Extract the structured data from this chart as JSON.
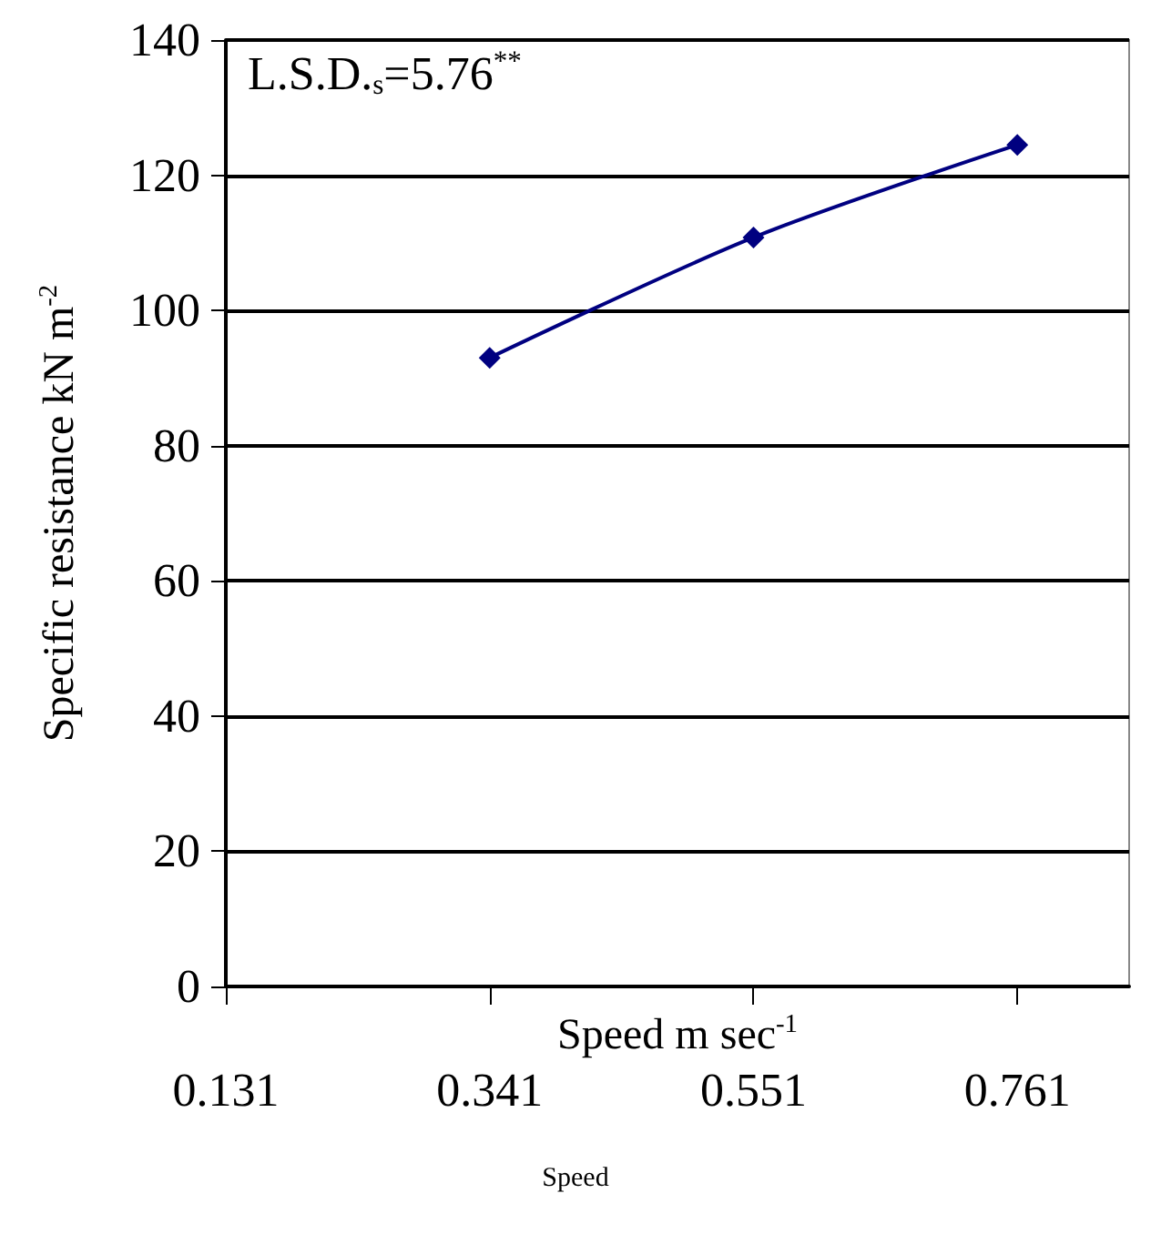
{
  "chart_data": {
    "type": "line",
    "xlabel": "Speed m sec$^{-1}$",
    "ylabel": "Specific resistance kN m$^{-2}$",
    "x": [
      0.341,
      0.551,
      0.761
    ],
    "series": [
      {
        "color": "#000080",
        "values": [
          93,
          110.8,
          124.5
        ]
      }
    ],
    "xlim": [
      0.131,
      0.85
    ],
    "xticks": [
      0.131,
      0.341,
      0.551,
      0.761
    ],
    "ylim": [
      0,
      140
    ],
    "yticks": [
      0,
      20,
      40,
      60,
      80,
      100,
      120,
      140
    ],
    "grid": "y",
    "marker": "diamond",
    "line_style": "solid",
    "annotations": [
      "L.S.D.$_{s}$=5.76$^{**}$",
      "Speed"
    ]
  }
}
